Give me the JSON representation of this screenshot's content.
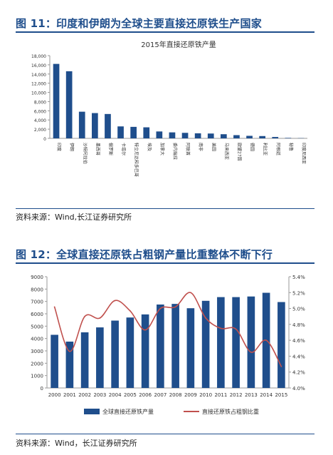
{
  "fig1": {
    "heading": "图 11：印度和伊朗为全球主要直接还原铁生产国家",
    "source": "资料来源：Wind,长江证券研究所"
  },
  "fig2": {
    "heading": "图 12：全球直接还原铁占粗钢产量比重整体不断下行",
    "source": "资料来源：Wind，长江证券研究所"
  },
  "chart_data": [
    {
      "type": "bar",
      "title": "2015年直接还原铁产量",
      "categories": [
        "印度",
        "伊朗",
        "沙特阿拉伯",
        "墨西哥",
        "俄罗斯",
        "卡塔尔",
        "特立尼达和多巴哥",
        "埃及",
        "加拿大",
        "委内瑞拉",
        "阿联酋",
        "南非",
        "美国",
        "马来西亚",
        "欧盟27国",
        "德国",
        "利比亚",
        "阿根廷",
        "秘鲁",
        "印度尼西亚"
      ],
      "values": [
        16200,
        14600,
        5800,
        5500,
        5300,
        2600,
        2500,
        2400,
        1500,
        1300,
        1200,
        1100,
        1050,
        900,
        700,
        550,
        500,
        300,
        100,
        50
      ],
      "yticks": [
        0,
        2000,
        4000,
        6000,
        8000,
        10000,
        12000,
        14000,
        16000,
        18000
      ],
      "ylim": [
        0,
        18000
      ],
      "color": "#1f4e8c"
    },
    {
      "type": "bar",
      "categories": [
        "2000",
        "2001",
        "2002",
        "2003",
        "2004",
        "2005",
        "2006",
        "2007",
        "2008",
        "2009",
        "2010",
        "2011",
        "2012",
        "2013",
        "2014",
        "2015"
      ],
      "series": [
        {
          "name": "全球直接还原铁产量",
          "type": "bar",
          "axis": "left",
          "color": "#1f4e8c",
          "values": [
            4300,
            3750,
            4500,
            4900,
            5450,
            5700,
            5950,
            6750,
            6800,
            6450,
            7050,
            7350,
            7350,
            7400,
            7700,
            6950
          ]
        },
        {
          "name": "直接还原铁占粗钢比重",
          "type": "line",
          "axis": "right",
          "color": "#c0504d",
          "values": [
            5.02,
            4.46,
            4.9,
            4.88,
            5.1,
            4.97,
            4.73,
            5.0,
            5.02,
            5.2,
            4.88,
            4.75,
            4.74,
            4.45,
            4.6,
            4.27
          ]
        }
      ],
      "yticks_left": [
        0,
        1000,
        2000,
        3000,
        4000,
        5000,
        6000,
        7000,
        8000,
        9000
      ],
      "ylim_left": [
        0,
        9000
      ],
      "yticks_right": [
        "4.0%",
        "4.2%",
        "4.4%",
        "4.6%",
        "4.8%",
        "5.0%",
        "5.2%",
        "5.4%"
      ],
      "ylim_right": [
        4.0,
        5.4
      ],
      "legend_position": "bottom"
    }
  ]
}
